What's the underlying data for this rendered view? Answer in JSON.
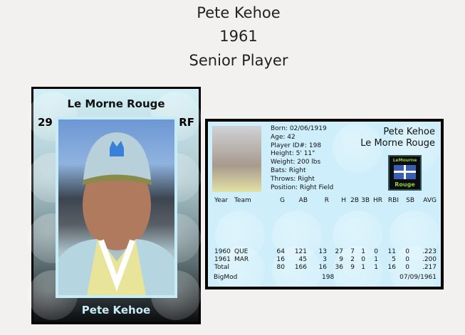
{
  "header": {
    "name": "Pete Kehoe",
    "year": "1961",
    "status": "Senior Player"
  },
  "front": {
    "team": "Le Morne Rouge",
    "number": "29",
    "position": "RF",
    "name": "Pete Kehoe"
  },
  "back": {
    "info": [
      "Born: 02/06/1919",
      "Age: 42",
      "Player ID#: 198",
      "Height: 5' 11\"",
      "Weight: 200 lbs",
      "Bats: Right",
      "Throws: Right",
      "Position: Right Field"
    ],
    "name": "Pete Kehoe",
    "team": "Le Morne Rouge",
    "logo_text": {
      "top": "LeMourne",
      "bottom": "Rouge"
    },
    "columns": [
      "Year",
      "Team",
      "G",
      "AB",
      "R",
      "H",
      "2B",
      "3B",
      "HR",
      "RBI",
      "SB",
      "AVG"
    ],
    "rows": [
      [
        "1960",
        "QUE",
        "64",
        "121",
        "13",
        "27",
        "7",
        "1",
        "0",
        "11",
        "0",
        ".223"
      ],
      [
        "1961",
        "MAR",
        "16",
        "45",
        "3",
        "9",
        "2",
        "0",
        "1",
        "5",
        "0",
        ".200"
      ],
      [
        "Total",
        "",
        "80",
        "166",
        "16",
        "36",
        "9",
        "1",
        "1",
        "16",
        "0",
        ".217"
      ]
    ],
    "footer": {
      "left": "BigMod",
      "center": "198",
      "right": "07/09/1961"
    }
  }
}
